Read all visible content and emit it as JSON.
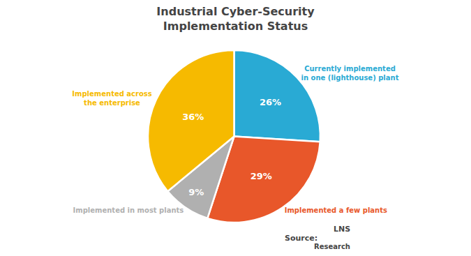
{
  "chart_data": {
    "type": "pie",
    "title": "Industrial Cyber-Security",
    "subtitle": "Implementation Status",
    "categories": [
      "Currently implemented\nin one (lighthouse) plant",
      "Implemented a few plants",
      "Implemented in most plants",
      "Implemented across\nthe enterprise"
    ],
    "values": [
      26,
      29,
      9,
      36
    ],
    "value_labels": [
      "26%",
      "29%",
      "9%",
      "36%"
    ],
    "colors": [
      "#29aad4",
      "#e8572a",
      "#b0b0b0",
      "#f6ba00"
    ],
    "data_labels": true,
    "annotations": [
      "Source:",
      "LNS",
      "Research"
    ]
  }
}
